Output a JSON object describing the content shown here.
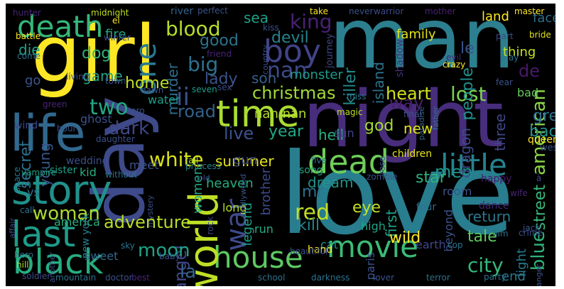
{
  "cloud": {
    "background": "#000000",
    "words": [
      {
        "text": "man",
        "color": "#2c7f8e"
      },
      {
        "text": "girl",
        "color": "#fde725"
      },
      {
        "text": "love",
        "color": "#287d8e"
      },
      {
        "text": "night",
        "color": "#472d7b"
      },
      {
        "text": "day",
        "color": "#3e4a89"
      },
      {
        "text": "life",
        "color": "#31688e"
      },
      {
        "text": "time",
        "color": "#aadc32"
      },
      {
        "text": "dead",
        "color": "#6ece58"
      },
      {
        "text": "story",
        "color": "#21918c"
      },
      {
        "text": "last",
        "color": "#1e9c89"
      },
      {
        "text": "house",
        "color": "#5ec962"
      },
      {
        "text": "movie",
        "color": "#3bbb75"
      },
      {
        "text": "world",
        "color": "#bddf26"
      },
      {
        "text": "black",
        "color": "#27ad81"
      },
      {
        "text": "boy",
        "color": "#414487"
      },
      {
        "text": "death",
        "color": "#35b779"
      },
      {
        "text": "little",
        "color": "#26828e"
      },
      {
        "text": "war",
        "color": "#3e4a89"
      },
      {
        "text": "one",
        "color": "#2a788e"
      },
      {
        "text": "king",
        "color": "#482173"
      },
      {
        "text": "blood",
        "color": "#b5de2b"
      },
      {
        "text": "christmas",
        "color": "#a2da37"
      },
      {
        "text": "heart",
        "color": "#d0e11c"
      },
      {
        "text": "lost",
        "color": "#7fd34e"
      },
      {
        "text": "american",
        "color": "#8bd646"
      },
      {
        "text": "ii",
        "color": "#3b518b"
      },
      {
        "text": "two",
        "color": "#22a785"
      },
      {
        "text": "white",
        "color": "#d8e219"
      },
      {
        "text": "city",
        "color": "#35b779"
      },
      {
        "text": "blue",
        "color": "#2fb47c"
      },
      {
        "text": "street",
        "color": "#37b878"
      },
      {
        "text": "woman",
        "color": "#addc30"
      },
      {
        "text": "adventure",
        "color": "#b8de29"
      },
      {
        "text": "angel",
        "color": "#3f4788"
      },
      {
        "text": "la",
        "color": "#33638d"
      },
      {
        "text": "moon",
        "color": "#20a486"
      },
      {
        "text": "red",
        "color": "#c2df23"
      },
      {
        "text": "kill",
        "color": "#24868e"
      },
      {
        "text": "nan",
        "color": "#3e4a89"
      },
      {
        "text": "nan nan",
        "color": "#b5de2b"
      },
      {
        "text": "big",
        "color": "#2c728e"
      },
      {
        "text": "good",
        "color": "#2c728e"
      },
      {
        "text": "devil",
        "color": "#25848e"
      },
      {
        "text": "sea",
        "color": "#1fa088"
      },
      {
        "text": "le",
        "color": "#3b528b"
      },
      {
        "text": "people",
        "color": "#21918c"
      },
      {
        "text": "de",
        "color": "#48186a"
      },
      {
        "text": "island",
        "color": "#2c728e"
      },
      {
        "text": "killer",
        "color": "#238a8d"
      },
      {
        "text": "way",
        "color": "#481f70"
      },
      {
        "text": "god",
        "color": "#a5db36"
      },
      {
        "text": "new",
        "color": "#dde318"
      },
      {
        "text": "hell",
        "color": "#29af7f"
      },
      {
        "text": "year",
        "color": "#22a785"
      },
      {
        "text": "live",
        "color": "#3b528b"
      },
      {
        "text": "summer",
        "color": "#e5e419"
      },
      {
        "text": "dark",
        "color": "#3f4788"
      },
      {
        "text": "young",
        "color": "#39568c"
      },
      {
        "text": "secret",
        "color": "#2c728e"
      },
      {
        "text": "men",
        "color": "#1f948c"
      },
      {
        "text": "mr",
        "color": "#2d708e"
      },
      {
        "text": "dream",
        "color": "#1f958b"
      },
      {
        "text": "star",
        "color": "#2fb47c"
      },
      {
        "text": "eye",
        "color": "#c2df23"
      },
      {
        "text": "first",
        "color": "#1fa188"
      },
      {
        "text": "return",
        "color": "#2a788e"
      },
      {
        "text": "tale",
        "color": "#5ec962"
      },
      {
        "text": "wild",
        "color": "#fde725"
      },
      {
        "text": "back",
        "color": "#21918c"
      },
      {
        "text": "great",
        "color": "#2d718e"
      },
      {
        "text": "three",
        "color": "#3f4889"
      },
      {
        "text": "dragon",
        "color": "#3e4a89"
      },
      {
        "text": "light",
        "color": "#29798e"
      },
      {
        "text": "end",
        "color": "#2a788e"
      },
      {
        "text": "road",
        "color": "#34618d"
      },
      {
        "text": "home",
        "color": "#c0df25"
      },
      {
        "text": "game",
        "color": "#1fa287"
      },
      {
        "text": "dog",
        "color": "#31b57b"
      },
      {
        "text": "murder",
        "color": "#2e6e8e"
      },
      {
        "text": "son",
        "color": "#34608d"
      },
      {
        "text": "lady",
        "color": "#3b528b"
      },
      {
        "text": "monster",
        "color": "#1e9b8a"
      },
      {
        "text": "die",
        "color": "#20a386"
      },
      {
        "text": "fire",
        "color": "#22a884"
      },
      {
        "text": "family",
        "color": "#e2e418"
      },
      {
        "text": "land",
        "color": "#fde725"
      },
      {
        "text": "face",
        "color": "#2e6e8e"
      },
      {
        "text": "thing",
        "color": "#c5e021"
      },
      {
        "text": "bad",
        "color": "#67cc5c"
      },
      {
        "text": "women",
        "color": "#22a785"
      },
      {
        "text": "heaven",
        "color": "#27ad81"
      },
      {
        "text": "brother",
        "color": "#3e4a89"
      },
      {
        "text": "legend",
        "color": "#1fa187"
      },
      {
        "text": "run",
        "color": "#25ac82"
      },
      {
        "text": "long",
        "color": "#b2dd2d"
      },
      {
        "text": "gun",
        "color": "#3e4989"
      },
      {
        "text": "water",
        "color": "#1e9c89"
      },
      {
        "text": "ghost",
        "color": "#3b528b"
      },
      {
        "text": "sun",
        "color": "#3f4788"
      },
      {
        "text": "shadow",
        "color": "#46307e"
      },
      {
        "text": "journey",
        "color": "#3f4788"
      },
      {
        "text": "queen",
        "color": "#fde725"
      },
      {
        "text": "west",
        "color": "#3b528b"
      },
      {
        "text": "go",
        "color": "#3a548c"
      },
      {
        "text": "wind",
        "color": "#3e4a89"
      },
      {
        "text": "wedding",
        "color": "#3c4f8a"
      },
      {
        "text": "vs",
        "color": "#2c728e"
      },
      {
        "text": "america",
        "color": "#29af7f"
      },
      {
        "text": "new york",
        "color": "#26828e"
      },
      {
        "text": "paris",
        "color": "#3b528b"
      },
      {
        "text": "cat",
        "color": "#1e9b8a"
      },
      {
        "text": "earth",
        "color": "#3f4788"
      },
      {
        "text": "high",
        "color": "#20a386"
      },
      {
        "text": "sweet",
        "color": "#31688e"
      },
      {
        "text": "hand",
        "color": "#fde725"
      },
      {
        "text": "room",
        "color": "#39558c"
      },
      {
        "text": "dance",
        "color": "#482576"
      },
      {
        "text": "beyond",
        "color": "#3b528b"
      },
      {
        "text": "kid",
        "color": "#27ad81"
      },
      {
        "text": "sister",
        "color": "#1fa088"
      },
      {
        "text": "meet",
        "color": "#3b528b"
      },
      {
        "text": "children",
        "color": "#e7e419"
      },
      {
        "text": "song",
        "color": "#20a486"
      },
      {
        "text": "four",
        "color": "#2d718e"
      },
      {
        "text": "happy",
        "color": "#481a6c"
      },
      {
        "text": "zombie",
        "color": "#3b528b"
      },
      {
        "text": "hunter",
        "color": "#482576"
      },
      {
        "text": "midnight",
        "color": "#c2df23"
      },
      {
        "text": "river",
        "color": "#33638d"
      },
      {
        "text": "perfect",
        "color": "#3b528b"
      },
      {
        "text": "sex",
        "color": "#3e4a89"
      },
      {
        "text": "friend",
        "color": "#482374"
      },
      {
        "text": "seven",
        "color": "#1f9e89"
      },
      {
        "text": "kiss",
        "color": "#39568c"
      },
      {
        "text": "take",
        "color": "#fde725"
      },
      {
        "text": "never",
        "color": "#3b528b"
      },
      {
        "text": "warrior",
        "color": "#3e4a89"
      },
      {
        "text": "mother",
        "color": "#482173"
      },
      {
        "text": "master",
        "color": "#fde725"
      },
      {
        "text": "bride",
        "color": "#dde318"
      },
      {
        "text": "part",
        "color": "#3e4a89"
      },
      {
        "text": "play",
        "color": "#2c728e"
      },
      {
        "text": "evil",
        "color": "#482576"
      },
      {
        "text": "crazy",
        "color": "#fde725"
      },
      {
        "text": "fear",
        "color": "#3b528b"
      },
      {
        "text": "miss",
        "color": "#2c728e"
      },
      {
        "text": "magic",
        "color": "#bddf26"
      },
      {
        "text": "final",
        "color": "#3b528b"
      },
      {
        "text": "paradise",
        "color": "#35608d"
      },
      {
        "text": "father",
        "color": "#2c728e"
      },
      {
        "text": "five",
        "color": "#2c728e"
      },
      {
        "text": "rose",
        "color": "#3b528b"
      },
      {
        "text": "princess",
        "color": "#26828e"
      },
      {
        "text": "fall",
        "color": "#b5de2b"
      },
      {
        "text": "daughter",
        "color": "#3b528b"
      },
      {
        "text": "zero",
        "color": "#3b528b"
      },
      {
        "text": "hour",
        "color": "#3b528b"
      },
      {
        "text": "space",
        "color": "#2a788e"
      },
      {
        "text": "vampire",
        "color": "#1fa287"
      },
      {
        "text": "without",
        "color": "#2c728e"
      },
      {
        "text": "town",
        "color": "#3b528b"
      },
      {
        "text": "dawn",
        "color": "#3b528b"
      },
      {
        "text": "green",
        "color": "#482576"
      },
      {
        "text": "living",
        "color": "#3b528b"
      },
      {
        "text": "battle",
        "color": "#fde725"
      },
      {
        "text": "winter",
        "color": "#3e4a89"
      },
      {
        "text": "el",
        "color": "#fde725"
      },
      {
        "text": "country",
        "color": "#3b528b"
      },
      {
        "text": "come",
        "color": "#2c728e"
      },
      {
        "text": "call",
        "color": "#2c728e"
      },
      {
        "text": "affair",
        "color": "#3e4a89"
      },
      {
        "text": "hero",
        "color": "#2c728e"
      },
      {
        "text": "hill",
        "color": "#b5de2b"
      },
      {
        "text": "another",
        "color": "#3b528b"
      },
      {
        "text": "soldier",
        "color": "#3e4a89"
      },
      {
        "text": "mountain",
        "color": "#2c728e"
      },
      {
        "text": "doctor",
        "color": "#3b528b"
      },
      {
        "text": "best",
        "color": "#482576"
      },
      {
        "text": "mystery",
        "color": "#3b528b"
      },
      {
        "text": "baby",
        "color": "#3b528b"
      },
      {
        "text": "sky",
        "color": "#2c728e"
      },
      {
        "text": "rock",
        "color": "#3e4a89"
      },
      {
        "text": "old",
        "color": "#3b528b"
      },
      {
        "text": "hollywood",
        "color": "#3b528b"
      },
      {
        "text": "school",
        "color": "#2c728e"
      },
      {
        "text": "darkness",
        "color": "#2c728e"
      },
      {
        "text": "lover",
        "color": "#3b528b"
      },
      {
        "text": "terror",
        "color": "#2c728e"
      },
      {
        "text": "party",
        "color": "#2c728e"
      },
      {
        "text": "stranger",
        "color": "#3b528b"
      },
      {
        "text": "film",
        "color": "#2c728e"
      },
      {
        "text": "crime",
        "color": "#3e4a89"
      },
      {
        "text": "jack",
        "color": "#3b528b"
      },
      {
        "text": "cop",
        "color": "#2c728e"
      },
      {
        "text": "wife",
        "color": "#482576"
      },
      {
        "text": "à",
        "color": "#3e4a89"
      },
      {
        "text": "beautiful",
        "color": "#3b528b"
      }
    ]
  }
}
